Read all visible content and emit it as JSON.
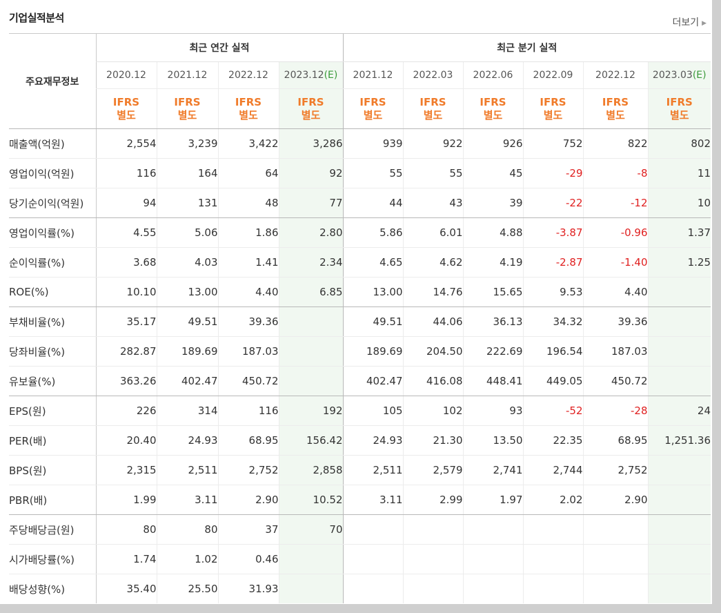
{
  "page_title": "기업실적분석",
  "more_label": "더보기",
  "header": {
    "corner_label": "주요재무정보",
    "annual_group": "최근 연간 실적",
    "quarter_group": "최근 분기 실적",
    "columns": [
      {
        "date": "2020.12",
        "est": "",
        "std1": "IFRS",
        "std2": "별도"
      },
      {
        "date": "2021.12",
        "est": "",
        "std1": "IFRS",
        "std2": "별도"
      },
      {
        "date": "2022.12",
        "est": "",
        "std1": "IFRS",
        "std2": "별도"
      },
      {
        "date": "2023.12",
        "est": "(E)",
        "std1": "IFRS",
        "std2": "별도"
      },
      {
        "date": "2021.12",
        "est": "",
        "std1": "IFRS",
        "std2": "별도"
      },
      {
        "date": "2022.03",
        "est": "",
        "std1": "IFRS",
        "std2": "별도"
      },
      {
        "date": "2022.06",
        "est": "",
        "std1": "IFRS",
        "std2": "별도"
      },
      {
        "date": "2022.09",
        "est": "",
        "std1": "IFRS",
        "std2": "별도"
      },
      {
        "date": "2022.12",
        "est": "",
        "std1": "IFRS",
        "std2": "별도"
      },
      {
        "date": "2023.03",
        "est": "(E)",
        "std1": "IFRS",
        "std2": "별도"
      }
    ]
  },
  "rows": [
    {
      "label": "매출액(억원)",
      "values": [
        "2,554",
        "3,239",
        "3,422",
        "3,286",
        "939",
        "922",
        "926",
        "752",
        "822",
        "802"
      ]
    },
    {
      "label": "영업이익(억원)",
      "values": [
        "116",
        "164",
        "64",
        "92",
        "55",
        "55",
        "45",
        "-29",
        "-8",
        "11"
      ]
    },
    {
      "label": "당기순이익(억원)",
      "values": [
        "94",
        "131",
        "48",
        "77",
        "44",
        "43",
        "39",
        "-22",
        "-12",
        "10"
      ]
    },
    {
      "label": "영업이익률(%)",
      "values": [
        "4.55",
        "5.06",
        "1.86",
        "2.80",
        "5.86",
        "6.01",
        "4.88",
        "-3.87",
        "-0.96",
        "1.37"
      ]
    },
    {
      "label": "순이익률(%)",
      "values": [
        "3.68",
        "4.03",
        "1.41",
        "2.34",
        "4.65",
        "4.62",
        "4.19",
        "-2.87",
        "-1.40",
        "1.25"
      ]
    },
    {
      "label": "ROE(%)",
      "values": [
        "10.10",
        "13.00",
        "4.40",
        "6.85",
        "13.00",
        "14.76",
        "15.65",
        "9.53",
        "4.40",
        ""
      ]
    },
    {
      "label": "부채비율(%)",
      "values": [
        "35.17",
        "49.51",
        "39.36",
        "",
        "49.51",
        "44.06",
        "36.13",
        "34.32",
        "39.36",
        ""
      ]
    },
    {
      "label": "당좌비율(%)",
      "values": [
        "282.87",
        "189.69",
        "187.03",
        "",
        "189.69",
        "204.50",
        "222.69",
        "196.54",
        "187.03",
        ""
      ]
    },
    {
      "label": "유보율(%)",
      "values": [
        "363.26",
        "402.47",
        "450.72",
        "",
        "402.47",
        "416.08",
        "448.41",
        "449.05",
        "450.72",
        ""
      ]
    },
    {
      "label": "EPS(원)",
      "values": [
        "226",
        "314",
        "116",
        "192",
        "105",
        "102",
        "93",
        "-52",
        "-28",
        "24"
      ]
    },
    {
      "label": "PER(배)",
      "values": [
        "20.40",
        "24.93",
        "68.95",
        "156.42",
        "24.93",
        "21.30",
        "13.50",
        "22.35",
        "68.95",
        "1,251.36"
      ]
    },
    {
      "label": "BPS(원)",
      "values": [
        "2,315",
        "2,511",
        "2,752",
        "2,858",
        "2,511",
        "2,579",
        "2,741",
        "2,744",
        "2,752",
        ""
      ]
    },
    {
      "label": "PBR(배)",
      "values": [
        "1.99",
        "3.11",
        "2.90",
        "10.52",
        "3.11",
        "2.99",
        "1.97",
        "2.02",
        "2.90",
        ""
      ]
    },
    {
      "label": "주당배당금(원)",
      "values": [
        "80",
        "80",
        "37",
        "70",
        "",
        "",
        "",
        "",
        "",
        ""
      ]
    },
    {
      "label": "시가배당률(%)",
      "values": [
        "1.74",
        "1.02",
        "0.46",
        "",
        "",
        "",
        "",
        "",
        "",
        ""
      ]
    },
    {
      "label": "배당성향(%)",
      "values": [
        "35.40",
        "25.50",
        "31.93",
        "",
        "",
        "",
        "",
        "",
        "",
        ""
      ]
    }
  ],
  "colors": {
    "negative": "#e02020",
    "standard": "#f07b2a",
    "estimate_bg": "#f1f8f1",
    "estimate_text": "#3a9a3a"
  }
}
